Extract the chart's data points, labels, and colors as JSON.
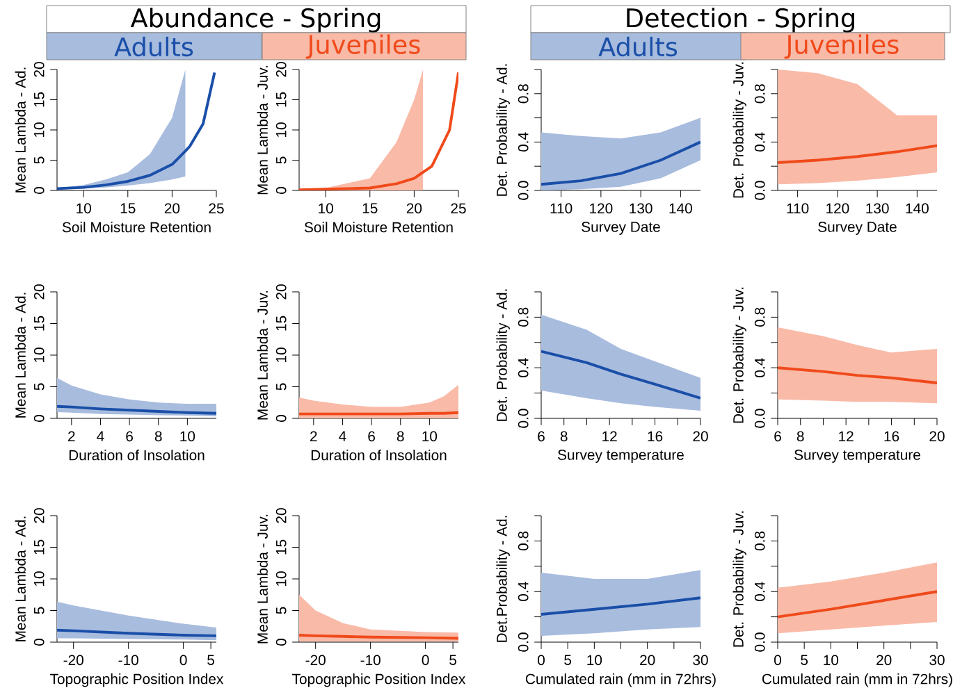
{
  "chart_data": [
    {
      "type": "line",
      "title": "Abundance - Spring",
      "subtitle": "Adults",
      "xlabel": "Soil Moisture Retention",
      "ylabel": "Mean Lambda - Ad.",
      "xlim": [
        7,
        25
      ],
      "ylim": [
        0,
        20
      ],
      "xticks": [
        10,
        15,
        20,
        25
      ],
      "yticks": [
        0,
        5,
        10,
        15,
        20
      ],
      "series": [
        {
          "color": "#1a4fa8",
          "x": [
            7,
            10,
            12.5,
            15,
            17.5,
            20,
            21.5,
            22,
            23.5,
            24.8
          ],
          "values": [
            0.3,
            0.5,
            0.9,
            1.5,
            2.5,
            4.3,
            6.5,
            7.3,
            11,
            19.5
          ],
          "lower": [
            0.2,
            0.3,
            0.5,
            0.8,
            1.2,
            1.8,
            2.3,
            null,
            null,
            null
          ],
          "upper": [
            0.4,
            0.9,
            1.8,
            3,
            6,
            12,
            20,
            null,
            null,
            null
          ]
        }
      ]
    },
    {
      "type": "line",
      "subtitle": "Juveniles",
      "xlabel": "Soil Moisture Retention",
      "ylabel": "Mean Lambda - Juv.",
      "xlim": [
        7,
        25
      ],
      "ylim": [
        0,
        20
      ],
      "xticks": [
        10,
        15,
        20,
        25
      ],
      "yticks": [
        0,
        5,
        10,
        15,
        20
      ],
      "series": [
        {
          "color": "#f04a1a",
          "x": [
            7,
            10,
            15,
            18,
            20,
            21,
            22,
            24,
            25
          ],
          "values": [
            0.1,
            0.2,
            0.4,
            1.1,
            2,
            3,
            4,
            10,
            19.5
          ],
          "lower": [
            0,
            0,
            0,
            0,
            0,
            0.05,
            null,
            null,
            null
          ],
          "upper": [
            0.2,
            0.4,
            2,
            8,
            15,
            20,
            null,
            null,
            null
          ]
        }
      ]
    },
    {
      "type": "line",
      "title": "Detection - Spring",
      "subtitle": "Adults",
      "xlabel": "Survey Date",
      "ylabel": "Det. Probability - Ad.",
      "xlim": [
        105,
        145
      ],
      "ylim": [
        0,
        1
      ],
      "xticks": [
        110,
        120,
        130,
        140
      ],
      "yticks": [
        {
          "value": 0,
          "label": "0.0"
        },
        {
          "value": 0.2,
          "label": null
        },
        0.4,
        {
          "value": 0.6,
          "label": null
        },
        0.8,
        {
          "value": 1,
          "label": null
        }
      ],
      "series": [
        {
          "color": "#1a4fa8",
          "x": [
            105,
            115,
            125,
            135,
            145
          ],
          "values": [
            0.05,
            0.08,
            0.14,
            0.25,
            0.4
          ],
          "lower": [
            0.0,
            0.01,
            0.03,
            0.1,
            0.25
          ],
          "upper": [
            0.48,
            0.45,
            0.43,
            0.48,
            0.6
          ]
        }
      ]
    },
    {
      "type": "line",
      "subtitle": "Juveniles",
      "xlabel": "Survey Date",
      "ylabel": "Det. Probability - Juv.",
      "xlim": [
        105,
        145
      ],
      "ylim": [
        0,
        1
      ],
      "xticks": [
        110,
        120,
        130,
        140
      ],
      "yticks": [
        {
          "value": 0,
          "label": "0.0"
        },
        {
          "value": 0.2,
          "label": null
        },
        0.4,
        {
          "value": 0.6,
          "label": null
        },
        0.8,
        {
          "value": 1,
          "label": null
        }
      ],
      "series": [
        {
          "color": "#f04a1a",
          "x": [
            105,
            115,
            125,
            135,
            145
          ],
          "values": [
            0.23,
            0.25,
            0.28,
            0.32,
            0.37
          ],
          "lower": [
            0.05,
            0.06,
            0.08,
            0.11,
            0.15
          ],
          "upper": [
            1.0,
            0.97,
            0.88,
            0.62,
            0.62
          ]
        }
      ]
    },
    {
      "type": "line",
      "xlabel": "Duration of Insolation",
      "ylabel": "Mean Lambda - Ad.",
      "xlim": [
        1,
        12
      ],
      "ylim": [
        0,
        20
      ],
      "xticks": [
        2,
        4,
        6,
        8,
        10
      ],
      "yticks": [
        0,
        5,
        10,
        15,
        20
      ],
      "series": [
        {
          "color": "#1a4fa8",
          "x": [
            1,
            2,
            4,
            6,
            8,
            10,
            12
          ],
          "values": [
            1.9,
            1.8,
            1.5,
            1.3,
            1.1,
            0.9,
            0.8
          ],
          "lower": [
            1.0,
            0.9,
            0.7,
            0.6,
            0.5,
            0.45,
            0.3
          ],
          "upper": [
            6.4,
            5.2,
            3.8,
            3.0,
            2.5,
            2.3,
            2.3
          ]
        }
      ]
    },
    {
      "type": "line",
      "xlabel": "Duration of Insolation",
      "ylabel": "Mean Lambda - Juv.",
      "xlim": [
        1,
        12
      ],
      "ylim": [
        0,
        20
      ],
      "xticks": [
        2,
        4,
        6,
        8,
        10
      ],
      "yticks": [
        0,
        5,
        10,
        15,
        20
      ],
      "series": [
        {
          "color": "#f04a1a",
          "x": [
            1,
            2,
            4,
            6,
            8,
            10,
            11,
            12
          ],
          "values": [
            0.7,
            0.7,
            0.7,
            0.7,
            0.7,
            0.8,
            0.8,
            0.9
          ],
          "lower": [
            0,
            0,
            0,
            0,
            0,
            0,
            0,
            0
          ],
          "upper": [
            3.3,
            2.8,
            2.2,
            1.8,
            1.8,
            2.5,
            3.5,
            5.3
          ]
        }
      ]
    },
    {
      "type": "line",
      "xlabel": "Survey temperature",
      "ylabel": "Det. Probability - Ad.",
      "xlim": [
        6,
        20
      ],
      "ylim": [
        0,
        1
      ],
      "xticks": [
        6,
        8,
        {
          "value": 10,
          "label": null
        },
        12,
        {
          "value": 14,
          "label": null
        },
        16,
        {
          "value": 18,
          "label": null
        },
        20
      ],
      "yticks": [
        {
          "value": 0,
          "label": "0.0"
        },
        {
          "value": 0.2,
          "label": null
        },
        0.4,
        {
          "value": 0.6,
          "label": null
        },
        0.8,
        {
          "value": 1,
          "label": null
        }
      ],
      "series": [
        {
          "color": "#1a4fa8",
          "x": [
            6,
            10,
            13,
            16,
            20
          ],
          "values": [
            0.53,
            0.44,
            0.35,
            0.27,
            0.16
          ],
          "lower": [
            0.22,
            0.16,
            0.12,
            0.09,
            0.06
          ],
          "upper": [
            0.82,
            0.7,
            0.55,
            0.45,
            0.32
          ]
        }
      ]
    },
    {
      "type": "line",
      "xlabel": "Survey temperature",
      "ylabel": "Det. Probability - Juv.",
      "xlim": [
        6,
        20
      ],
      "ylim": [
        0,
        1
      ],
      "xticks": [
        6,
        8,
        {
          "value": 10,
          "label": null
        },
        12,
        {
          "value": 14,
          "label": null
        },
        16,
        {
          "value": 18,
          "label": null
        },
        20
      ],
      "yticks": [
        {
          "value": 0,
          "label": "0.0"
        },
        {
          "value": 0.2,
          "label": null
        },
        0.4,
        {
          "value": 0.6,
          "label": null
        },
        0.8,
        {
          "value": 1,
          "label": null
        }
      ],
      "series": [
        {
          "color": "#f04a1a",
          "x": [
            6,
            10,
            13,
            16,
            20
          ],
          "values": [
            0.4,
            0.37,
            0.34,
            0.32,
            0.28
          ],
          "lower": [
            0.15,
            0.14,
            0.13,
            0.13,
            0.12
          ],
          "upper": [
            0.72,
            0.65,
            0.58,
            0.52,
            0.55
          ]
        }
      ]
    },
    {
      "type": "line",
      "xlabel": "Topographic Position Index",
      "ylabel": "Mean Lambda - Ad.",
      "xlim": [
        -23,
        6
      ],
      "ylim": [
        0,
        20
      ],
      "xticks": [
        -20,
        -10,
        0,
        5
      ],
      "yticks": [
        0,
        5,
        10,
        15,
        20
      ],
      "series": [
        {
          "color": "#1a4fa8",
          "x": [
            -23,
            -20,
            -10,
            0,
            6
          ],
          "values": [
            1.9,
            1.8,
            1.4,
            1.1,
            1.0
          ],
          "lower": [
            0.6,
            0.6,
            0.5,
            0.4,
            0.3
          ],
          "upper": [
            6.4,
            5.8,
            4.2,
            2.9,
            2.3
          ]
        }
      ]
    },
    {
      "type": "line",
      "xlabel": "Topographic Position Index",
      "ylabel": "Mean Lambda - Juv.",
      "xlim": [
        -23,
        6
      ],
      "ylim": [
        0,
        20
      ],
      "xticks": [
        -20,
        -10,
        0,
        5
      ],
      "yticks": [
        0,
        5,
        10,
        15,
        20
      ],
      "series": [
        {
          "color": "#f04a1a",
          "x": [
            -23,
            -20,
            -15,
            -10,
            0,
            6
          ],
          "values": [
            1.1,
            1.0,
            0.9,
            0.8,
            0.7,
            0.6
          ],
          "lower": [
            0.1,
            0.1,
            0.1,
            0.1,
            0.1,
            0.1
          ],
          "upper": [
            7.5,
            5,
            3,
            2,
            1.6,
            1.5
          ]
        }
      ]
    },
    {
      "type": "line",
      "xlabel": "Cumulated rain (mm in 72hrs)",
      "ylabel": "Det.Probability - Ad.",
      "xlim": [
        0,
        30
      ],
      "ylim": [
        0,
        1
      ],
      "xticks": [
        0,
        5,
        10,
        {
          "value": 15,
          "label": null
        },
        20,
        {
          "value": 25,
          "label": null
        },
        30
      ],
      "yticks": [
        {
          "value": 0,
          "label": "0.0"
        },
        {
          "value": 0.2,
          "label": null
        },
        0.4,
        {
          "value": 0.6,
          "label": null
        },
        0.8,
        {
          "value": 1,
          "label": null
        }
      ],
      "series": [
        {
          "color": "#1a4fa8",
          "x": [
            0,
            10,
            20,
            30
          ],
          "values": [
            0.22,
            0.26,
            0.3,
            0.35
          ],
          "lower": [
            0.05,
            0.07,
            0.1,
            0.12
          ],
          "upper": [
            0.55,
            0.5,
            0.5,
            0.57
          ]
        }
      ]
    },
    {
      "type": "line",
      "xlabel": "Cumulated rain (mm in 72hrs)",
      "ylabel": "Det. Probability - Juv.",
      "xlim": [
        0,
        30
      ],
      "ylim": [
        0,
        1
      ],
      "xticks": [
        0,
        5,
        10,
        {
          "value": 15,
          "label": null
        },
        20,
        {
          "value": 25,
          "label": null
        },
        30
      ],
      "yticks": [
        {
          "value": 0,
          "label": "0.0"
        },
        {
          "value": 0.2,
          "label": null
        },
        0.4,
        {
          "value": 0.6,
          "label": null
        },
        0.8,
        {
          "value": 1,
          "label": null
        }
      ],
      "series": [
        {
          "color": "#f04a1a",
          "x": [
            0,
            10,
            20,
            30
          ],
          "values": [
            0.2,
            0.26,
            0.33,
            0.4
          ],
          "lower": [
            0.07,
            0.1,
            0.13,
            0.16
          ],
          "upper": [
            0.43,
            0.48,
            0.55,
            0.63
          ]
        }
      ]
    }
  ]
}
